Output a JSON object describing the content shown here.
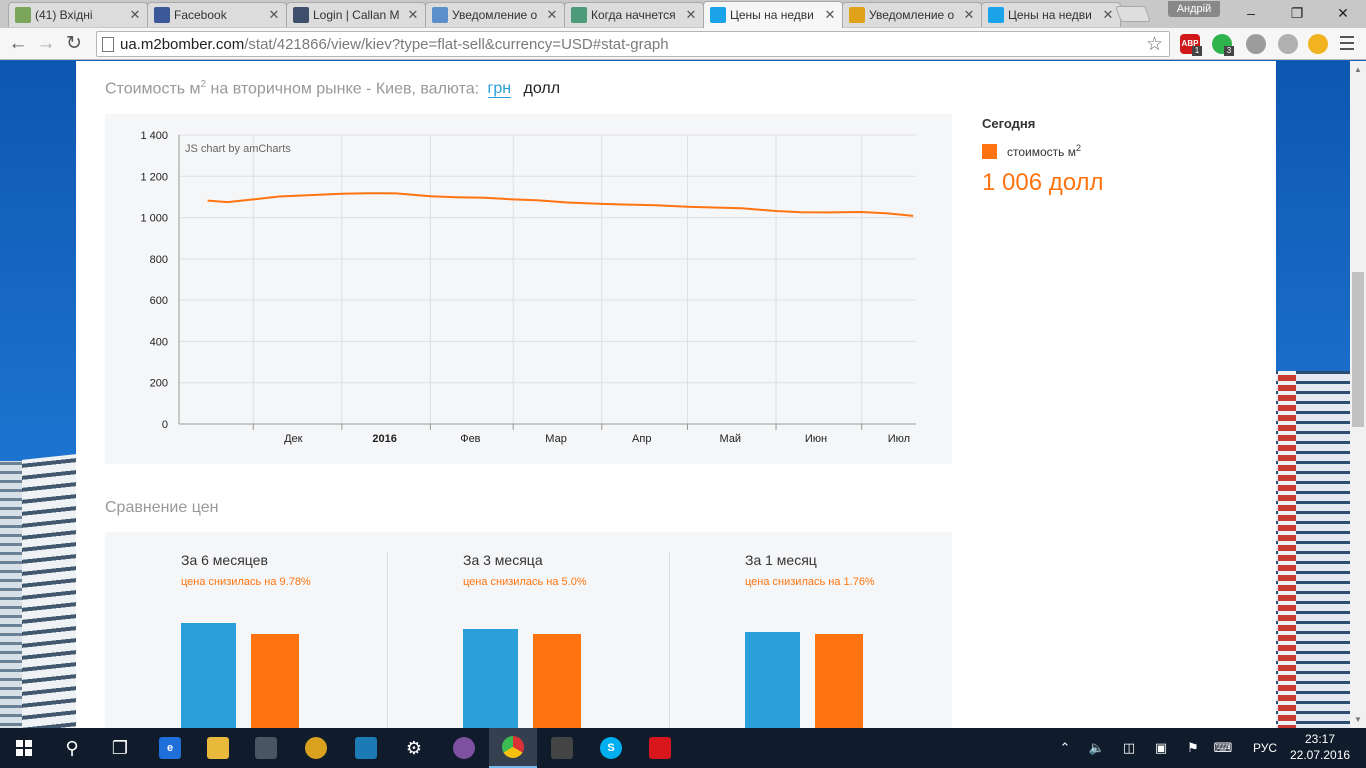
{
  "browser": {
    "tabs": [
      {
        "title": "(41) Вхідні",
        "icon": "mail-icon",
        "color": "#7aa55a"
      },
      {
        "title": "Facebook",
        "icon": "facebook-icon",
        "color": "#3b5998"
      },
      {
        "title": "Login | Callan M",
        "icon": "callan-icon",
        "color": "#3d4f6a"
      },
      {
        "title": "Уведомление о",
        "icon": "grid-icon",
        "color": "#5b8fc9"
      },
      {
        "title": "Когда начнется",
        "icon": "forum-icon",
        "color": "#4d9b7a"
      },
      {
        "title": "Цены на недви",
        "icon": "house-icon",
        "color": "#1aa3e8"
      },
      {
        "title": "Уведомление о",
        "icon": "target-icon",
        "color": "#e0a21a"
      },
      {
        "title": "Цены на недви",
        "icon": "house-icon",
        "color": "#1aa3e8"
      }
    ],
    "active_tab": 5,
    "profile_name": "Андрій",
    "url_host": "ua.m2bomber.com",
    "url_rest": "/stat/421866/view/kiev?type=flat-sell&currency=USD#stat-graph",
    "ext_abp_label": "ABP",
    "ext_abp_badge": "1",
    "ext_green_badge": "3"
  },
  "page": {
    "title_prefix": "Стоимость м",
    "title_sup": "2",
    "title_suffix": " на вторичном рынке - Киев, валюта:",
    "currency_link": "грн",
    "currency_active": "долл",
    "chart_credit": "JS chart by amCharts",
    "today_label": "Сегодня",
    "legend_prefix": "стоимость м",
    "legend_sup": "2",
    "today_value": "1 006 долл",
    "compare_title": "Сравнение цен",
    "compare": [
      {
        "period": "За 6 месяцев",
        "delta": "цена снизилась на 9.78%",
        "bar_then": 1115,
        "bar_now": 1006
      },
      {
        "period": "За 3 месяца",
        "delta": "цена снизилась на 5.0%",
        "bar_then": 1059,
        "bar_now": 1006
      },
      {
        "period": "За 1 месяц",
        "delta": "цена снизилась на 1.76%",
        "bar_then": 1024,
        "bar_now": 1006
      }
    ],
    "colors": {
      "accent_orange": "#ff7410",
      "accent_blue": "#2b9fd9",
      "link": "#2a9fd8"
    }
  },
  "chart_data": {
    "type": "line",
    "title": "",
    "xlabel": "",
    "ylabel": "",
    "ylim": [
      0,
      1400
    ],
    "yticks": [
      "0",
      "200",
      "400",
      "600",
      "800",
      "1 000",
      "1 200",
      "1 400"
    ],
    "xticks": [
      {
        "label": "Дек",
        "bold": false
      },
      {
        "label": "2016",
        "bold": true
      },
      {
        "label": "Фев",
        "bold": false
      },
      {
        "label": "Мар",
        "bold": false
      },
      {
        "label": "Апр",
        "bold": false
      },
      {
        "label": "Май",
        "bold": false
      },
      {
        "label": "Июн",
        "bold": false
      },
      {
        "label": "Июл",
        "bold": false
      }
    ],
    "x": [
      "2015-11-15",
      "2015-11-22",
      "2015-12-01",
      "2015-12-10",
      "2015-12-20",
      "2016-01-01",
      "2016-01-10",
      "2016-01-20",
      "2016-02-01",
      "2016-02-10",
      "2016-02-20",
      "2016-03-01",
      "2016-03-10",
      "2016-03-20",
      "2016-04-01",
      "2016-04-10",
      "2016-04-20",
      "2016-05-01",
      "2016-05-10",
      "2016-05-20",
      "2016-06-01",
      "2016-06-10",
      "2016-06-20",
      "2016-07-01",
      "2016-07-10",
      "2016-07-19"
    ],
    "series": [
      {
        "values": [
          1082,
          1075,
          1088,
          1102,
          1108,
          1115,
          1118,
          1117,
          1103,
          1098,
          1096,
          1088,
          1083,
          1073,
          1066,
          1063,
          1060,
          1052,
          1049,
          1045,
          1032,
          1026,
          1025,
          1027,
          1020,
          1008
        ]
      }
    ],
    "grid": true,
    "legend": "none"
  },
  "taskbar": {
    "lang": "РУС",
    "time": "23:17",
    "date": "22.07.2016"
  }
}
